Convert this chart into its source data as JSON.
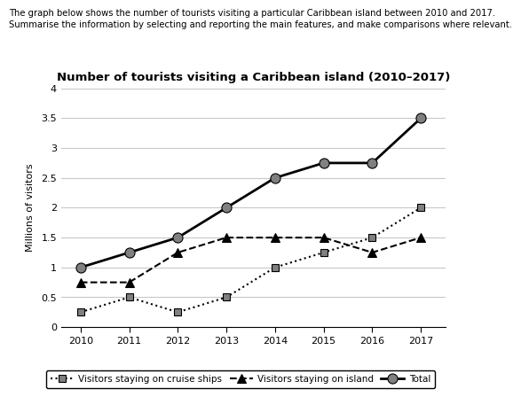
{
  "title": "Number of tourists visiting a Caribbean island (2010–2017)",
  "header_line1": "The graph below shows the number of tourists visiting a particular Caribbean island between 2010 and 2017.",
  "header_line2": "Summarise the information by selecting and reporting the main features, and make comparisons where relevant.",
  "ylabel": "Millions of visitors",
  "years": [
    2010,
    2011,
    2012,
    2013,
    2014,
    2015,
    2016,
    2017
  ],
  "cruise_ships": [
    0.25,
    0.5,
    0.25,
    0.5,
    1.0,
    1.25,
    1.5,
    2.0
  ],
  "on_island": [
    0.75,
    0.75,
    1.25,
    1.5,
    1.5,
    1.5,
    1.25,
    1.5
  ],
  "total": [
    1.0,
    1.25,
    1.5,
    2.0,
    2.5,
    2.75,
    2.75,
    3.5
  ],
  "ylim": [
    0,
    4
  ],
  "yticks": [
    0,
    0.5,
    1.0,
    1.5,
    2.0,
    2.5,
    3.0,
    3.5,
    4.0
  ],
  "grid_color": "#c8c8c8",
  "marker_grey": "#808080",
  "legend_cruise_label": "Visitors staying on cruise ships",
  "legend_island_label": "Visitors staying on island",
  "legend_total_label": "Total"
}
